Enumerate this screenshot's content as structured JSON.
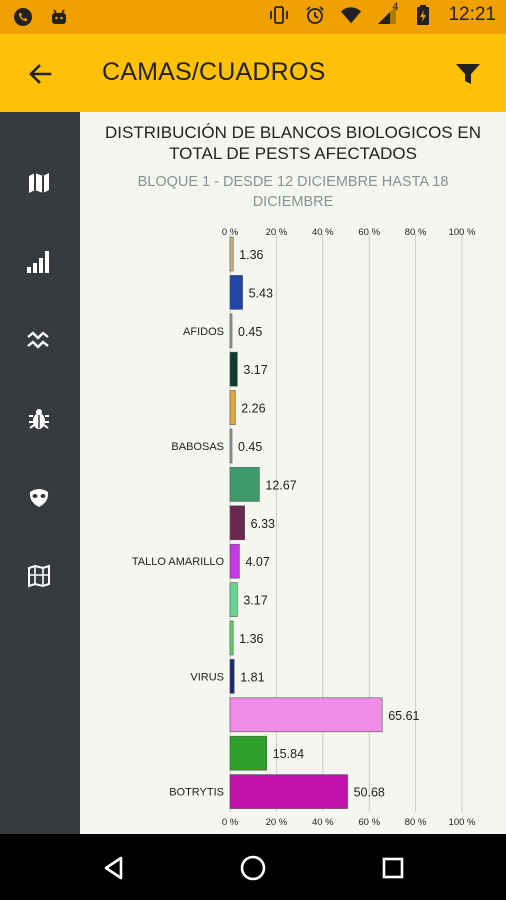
{
  "status_bar": {
    "time": "12:21",
    "battery_pct": "4",
    "icons_left": [
      "phone-icon",
      "android-icon"
    ],
    "icons_right": [
      "vibrate-icon",
      "alarm-icon",
      "wifi-icon",
      "signal-icon",
      "battery-icon"
    ]
  },
  "app_bar": {
    "title": "CAMAS/CUADROS",
    "back_icon": "arrow-back-icon",
    "filter_icon": "filter-icon",
    "color": "#ffc107"
  },
  "sidebar": {
    "items": [
      {
        "name": "map-icon"
      },
      {
        "name": "signal-bars-icon"
      },
      {
        "name": "trend-icon"
      },
      {
        "name": "bug-icon"
      },
      {
        "name": "mask-icon"
      },
      {
        "name": "grid-map-icon"
      }
    ]
  },
  "chart": {
    "title_line1": "DISTRIBUCIÓN DE BLANCOS BIOLOGICOS EN",
    "title_line2": "TOTAL DE PESTS AFECTADOS",
    "subtitle_line1": "BLOQUE 1 - DESDE 12 DICIEMBRE HASTA 18",
    "subtitle_line2": "DICIEMBRE"
  },
  "chart_data": {
    "type": "bar",
    "orientation": "horizontal",
    "x_ticks": [
      "0 %",
      "20 %",
      "40 %",
      "60 %",
      "80 %",
      "100 %"
    ],
    "xlim": [
      0,
      100
    ],
    "grid": true,
    "bars": [
      {
        "value": 1.36,
        "label": "1.36",
        "category": "",
        "color": "#c9b488"
      },
      {
        "value": 5.43,
        "label": "5.43",
        "category": "",
        "color": "#1f46a8"
      },
      {
        "value": 0.45,
        "label": "0.45",
        "category": "AFIDOS",
        "color": "#9aa0a6"
      },
      {
        "value": 3.17,
        "label": "3.17",
        "category": "",
        "color": "#0f3a30"
      },
      {
        "value": 2.26,
        "label": "2.26",
        "category": "",
        "color": "#e0a93a"
      },
      {
        "value": 0.45,
        "label": "0.45",
        "category": "BABOSAS",
        "color": "#9aa0a6"
      },
      {
        "value": 12.67,
        "label": "12.67",
        "category": "",
        "color": "#3f9a6e"
      },
      {
        "value": 6.33,
        "label": "6.33",
        "category": "",
        "color": "#6a2a4f"
      },
      {
        "value": 4.07,
        "label": "4.07",
        "category": "TALLO AMARILLO",
        "color": "#c23be0"
      },
      {
        "value": 3.17,
        "label": "3.17",
        "category": "",
        "color": "#66d68f"
      },
      {
        "value": 1.36,
        "label": "1.36",
        "category": "",
        "color": "#5fd16a"
      },
      {
        "value": 1.81,
        "label": "1.81",
        "category": "VIRUS",
        "color": "#1a2a7a"
      },
      {
        "value": 65.61,
        "label": "65.61",
        "category": "",
        "color": "#ef8de8"
      },
      {
        "value": 15.84,
        "label": "15.84",
        "category": "",
        "color": "#2ea02a"
      },
      {
        "value": 50.68,
        "label": "50.68",
        "category": "BOTRYTIS",
        "color": "#c011a8"
      }
    ]
  },
  "nav_bar": {
    "back_icon": "nav-back-icon",
    "home_icon": "nav-home-icon",
    "recents_icon": "nav-recents-icon"
  }
}
